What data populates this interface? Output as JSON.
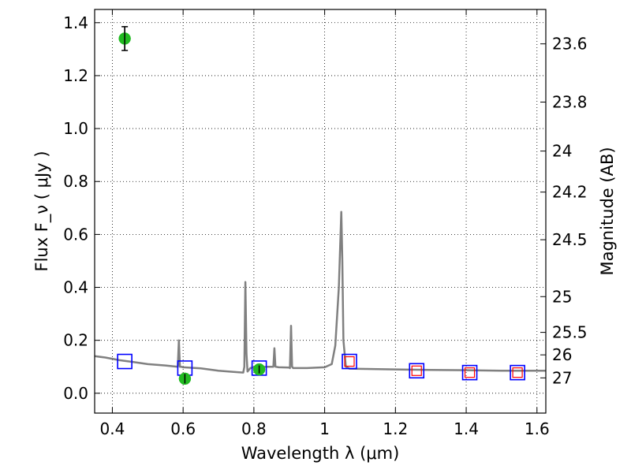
{
  "chart_data": {
    "type": "line",
    "title": "",
    "xlabel": "Wavelength  λ (μm)",
    "ylabel": "Flux  F_ν  ( μJy )",
    "ylabel_right": "Magnitude (AB)",
    "xlim": [
      0.35,
      1.625
    ],
    "ylim": [
      -0.075,
      1.45
    ],
    "grid": true,
    "x_ticks": [
      0.4,
      0.6,
      0.8,
      1.0,
      1.2,
      1.4,
      1.6
    ],
    "x_tick_labels": [
      "0.4",
      "0.6",
      "0.8",
      "1",
      "1.2",
      "1.4",
      "1.6"
    ],
    "y_ticks": [
      0.0,
      0.2,
      0.4,
      0.6,
      0.8,
      1.0,
      1.2,
      1.4
    ],
    "y_tick_labels": [
      "0.0",
      "0.2",
      "0.4",
      "0.6",
      "0.8",
      "1.0",
      "1.2",
      "1.4"
    ],
    "right_ticks": [
      {
        "label": "23.6",
        "flux": 1.32
      },
      {
        "label": "23.8",
        "flux": 1.1
      },
      {
        "label": "24",
        "flux": 0.915
      },
      {
        "label": "24.2",
        "flux": 0.76
      },
      {
        "label": "24.5",
        "flux": 0.58
      },
      {
        "label": "25",
        "flux": 0.365
      },
      {
        "label": "25.5",
        "flux": 0.23
      },
      {
        "label": "26",
        "flux": 0.145
      },
      {
        "label": "27",
        "flux": 0.058
      }
    ],
    "series": [
      {
        "kind": "line",
        "color": "#808080",
        "x": [
          0.35,
          0.38,
          0.42,
          0.46,
          0.5,
          0.55,
          0.585,
          0.588,
          0.591,
          0.594,
          0.6,
          0.65,
          0.7,
          0.75,
          0.77,
          0.773,
          0.776,
          0.779,
          0.782,
          0.79,
          0.8,
          0.84,
          0.855,
          0.858,
          0.861,
          0.87,
          0.9,
          0.902,
          0.905,
          0.908,
          0.911,
          0.95,
          1.0,
          1.02,
          1.03,
          1.04,
          1.047,
          1.05,
          1.053,
          1.06,
          1.07,
          1.1,
          1.2,
          1.3,
          1.4,
          1.5,
          1.625
        ],
        "y": [
          0.14,
          0.135,
          0.125,
          0.118,
          0.11,
          0.105,
          0.1,
          0.2,
          0.1,
          0.1,
          0.098,
          0.094,
          0.085,
          0.08,
          0.078,
          0.1,
          0.42,
          0.15,
          0.082,
          0.095,
          0.098,
          0.1,
          0.1,
          0.17,
          0.1,
          0.098,
          0.097,
          0.095,
          0.255,
          0.1,
          0.095,
          0.095,
          0.098,
          0.11,
          0.18,
          0.4,
          0.685,
          0.5,
          0.2,
          0.1,
          0.093,
          0.092,
          0.09,
          0.088,
          0.087,
          0.085,
          0.085
        ]
      },
      {
        "kind": "points",
        "marker": "square-open",
        "color": "#0000ff",
        "x": [
          0.435,
          0.605,
          0.815,
          1.07,
          1.26,
          1.41,
          1.545
        ],
        "y": [
          0.12,
          0.095,
          0.095,
          0.12,
          0.085,
          0.078,
          0.078
        ]
      },
      {
        "kind": "points",
        "marker": "square-open-small",
        "color": "#ff0000",
        "x": [
          1.07,
          1.26,
          1.41,
          1.545
        ],
        "y": [
          0.12,
          0.085,
          0.078,
          0.078
        ]
      },
      {
        "kind": "points",
        "marker": "circle-filled-errorbar",
        "color": "#22bb22",
        "x": [
          0.435,
          0.605,
          0.815
        ],
        "y": [
          1.34,
          0.055,
          0.09
        ],
        "yerr": [
          0.045,
          0.018,
          0.015
        ]
      }
    ]
  }
}
